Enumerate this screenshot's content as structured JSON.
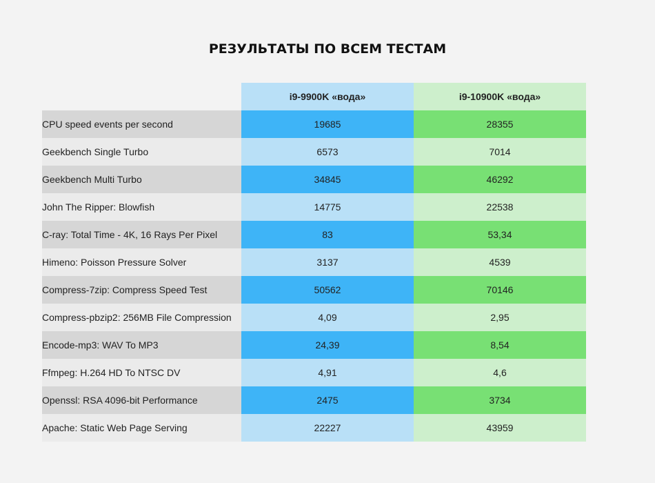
{
  "title": "РЕЗУЛЬТАТЫ ПО ВСЕМ ТЕСТАМ",
  "colors": {
    "background": "#f3f3f3",
    "series_a_dark": "#3eb4f7",
    "series_a_light": "#b9e0f7",
    "series_b_dark": "#78e074",
    "series_b_light": "#cdefcc",
    "label_dark": "#d6d6d6",
    "label_light": "#ebebeb"
  },
  "chart_data": {
    "type": "table",
    "title": "РЕЗУЛЬТАТЫ ПО ВСЕМ ТЕСТАМ",
    "columns": [
      "i9-9900K «вода»",
      "i9-10900K «вода»"
    ],
    "rows": [
      {
        "test": "CPU speed events per second",
        "values": [
          "19685",
          "28355"
        ]
      },
      {
        "test": "Geekbench Single Turbo",
        "values": [
          "6573",
          "7014"
        ]
      },
      {
        "test": "Geekbench Multi Turbo",
        "values": [
          "34845",
          "46292"
        ]
      },
      {
        "test": "John The Ripper: Blowfish",
        "values": [
          "14775",
          "22538"
        ]
      },
      {
        "test": "C-ray: Total Time - 4K, 16 Rays Per Pixel",
        "values": [
          "83",
          "53,34"
        ]
      },
      {
        "test": "Himeno: Poisson Pressure Solver",
        "values": [
          "3137",
          "4539"
        ]
      },
      {
        "test": "Compress-7zip: Compress Speed Test",
        "values": [
          "50562",
          "70146"
        ]
      },
      {
        "test": "Compress-pbzip2: 256MB File Compression",
        "values": [
          "4,09",
          "2,95"
        ]
      },
      {
        "test": "Encode-mp3: WAV To MP3",
        "values": [
          "24,39",
          "8,54"
        ]
      },
      {
        "test": "Ffmpeg: H.264 HD To NTSC DV",
        "values": [
          "4,91",
          "4,6"
        ]
      },
      {
        "test": "Openssl: RSA 4096-bit Performance",
        "values": [
          "2475",
          "3734"
        ]
      },
      {
        "test": "Apache: Static Web Page Serving",
        "values": [
          "22227",
          "43959"
        ]
      }
    ]
  }
}
